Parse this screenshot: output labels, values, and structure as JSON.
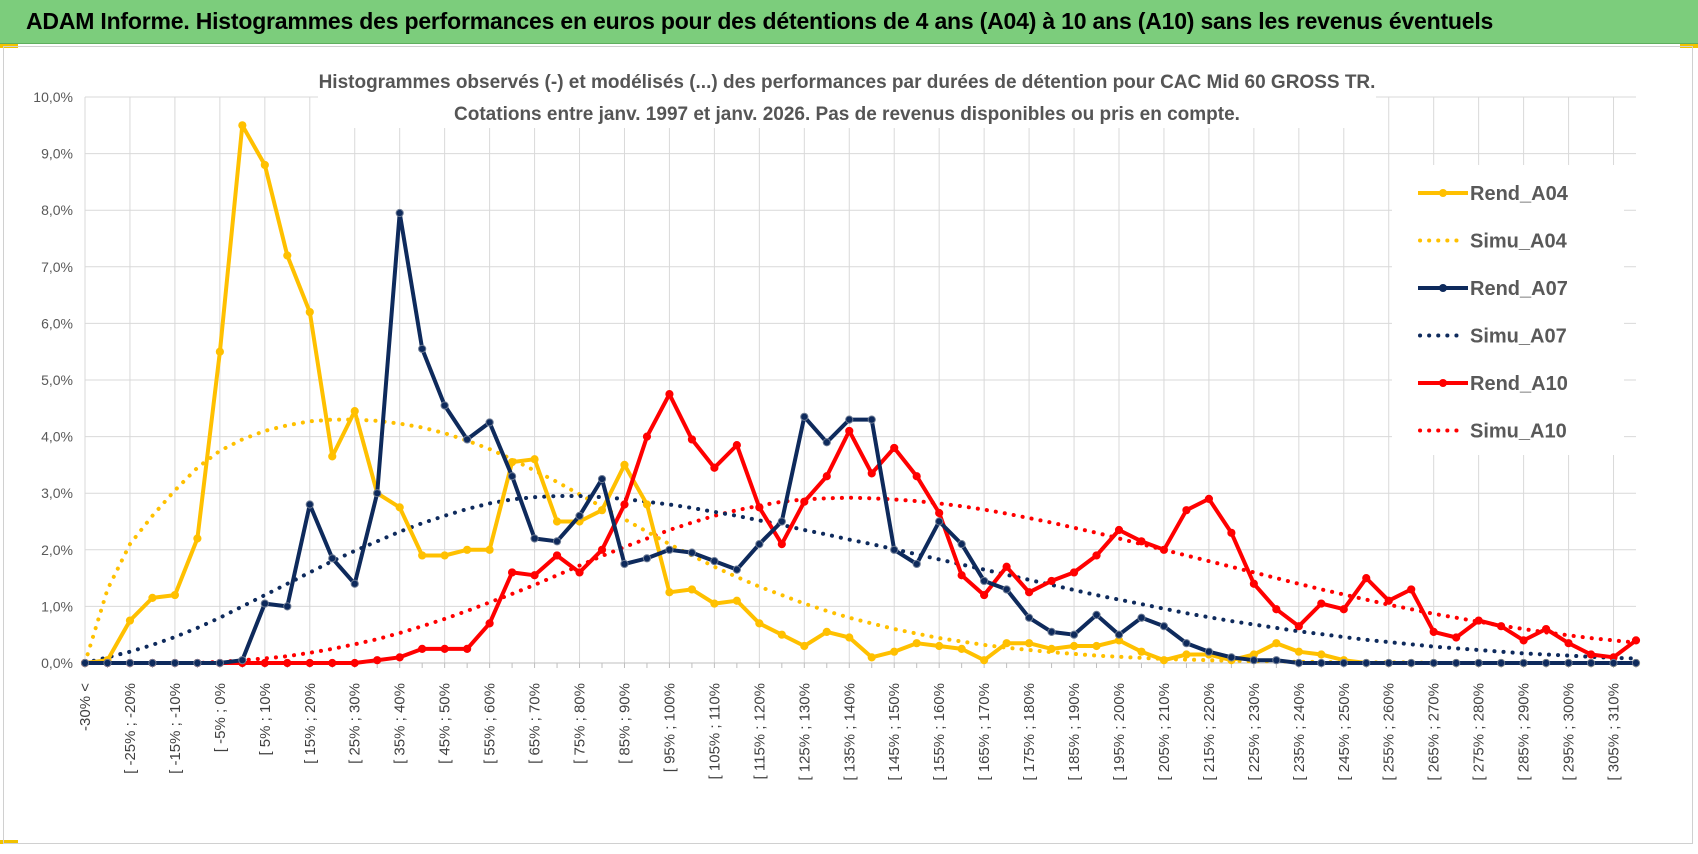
{
  "header": {
    "title": "ADAM Informe. Histogrammes des performances en euros pour des détentions de 4 ans (A04) à 10 ans (A10) sans les revenus éventuels"
  },
  "colors": {
    "header_bg": "#7ccd7c",
    "A04": "#ffc000",
    "A07": "#0e2a5c",
    "A10": "#ff0000"
  },
  "chart_data": {
    "type": "line",
    "title": [
      "Histogrammes observés (-) et modélisés (...)  des performances par durées de détention pour CAC Mid 60 GROSS TR.",
      "Cotations entre janv. 1997 et janv. 2026. Pas de revenus disponibles ou pris en compte."
    ],
    "ylim": [
      0,
      10
    ],
    "y_ticks": [
      "0,0%",
      "1,0%",
      "2,0%",
      "3,0%",
      "4,0%",
      "5,0%",
      "6,0%",
      "7,0%",
      "8,0%",
      "9,0%",
      "10,0%"
    ],
    "x_tick_labels": [
      "-30% <",
      "[ -25% ; -20%",
      "[ -15% ; -10%",
      "[ -5% ; 0%",
      "[ 5% ; 10%",
      "[ 15% ; 20%",
      "[ 25% ; 30%",
      "[ 35% ; 40%",
      "[ 45% ; 50%",
      "[ 55% ; 60%",
      "[ 65% ; 70%",
      "[ 75% ; 80%",
      "[ 85% ; 90%",
      "[ 95% ; 100%",
      "[ 105% ; 110%",
      "[ 115% ; 120%",
      "[ 125% ; 130%",
      "[ 135% ; 140%",
      "[ 145% ; 150%",
      "[ 155% ; 160%",
      "[ 165% ; 170%",
      "[ 175% ; 180%",
      "[ 185% ; 190%",
      "[ 195% ; 200%",
      "[ 205% ; 210%",
      "[ 215% ; 220%",
      "[ 225% ; 230%",
      "[ 235% ; 240%",
      "[ 245% ; 250%",
      "[ 255% ; 260%",
      "[ 265% ; 270%",
      "[ 275% ; 280%",
      "[ 285% ; 290%",
      "[ 295% ; 300%",
      "[ 305% ; 310%"
    ],
    "n_points": 70,
    "grid": true,
    "legend_position": "right",
    "series": [
      {
        "name": "Rend_A04",
        "style": "solid-markers",
        "color": "#ffc000",
        "values": [
          0,
          0.05,
          0.75,
          1.15,
          1.2,
          2.2,
          5.5,
          9.5,
          8.8,
          7.2,
          6.2,
          3.65,
          4.45,
          3.0,
          2.75,
          1.9,
          1.9,
          2.0,
          2.0,
          3.55,
          3.6,
          2.5,
          2.5,
          2.7,
          3.5,
          2.8,
          1.25,
          1.3,
          1.05,
          1.1,
          0.7,
          0.5,
          0.3,
          0.55,
          0.45,
          0.1,
          0.2,
          0.35,
          0.3,
          0.25,
          0.05,
          0.35,
          0.35,
          0.25,
          0.3,
          0.3,
          0.4,
          0.2,
          0.05,
          0.15,
          0.15,
          0.05,
          0.15,
          0.35,
          0.2,
          0.15,
          0.05,
          0,
          0,
          0,
          0,
          0,
          0,
          0,
          0,
          0,
          0,
          0,
          0,
          0
        ]
      },
      {
        "name": "Simu_A04",
        "style": "dotted",
        "color": "#ffc000",
        "values": [
          0,
          1.3,
          2.1,
          2.6,
          3.05,
          3.45,
          3.75,
          3.95,
          4.1,
          4.2,
          4.27,
          4.3,
          4.3,
          4.28,
          4.23,
          4.16,
          4.06,
          3.93,
          3.78,
          3.6,
          3.4,
          3.2,
          2.98,
          2.76,
          2.54,
          2.32,
          2.1,
          1.9,
          1.7,
          1.52,
          1.35,
          1.2,
          1.05,
          0.92,
          0.8,
          0.7,
          0.6,
          0.52,
          0.44,
          0.38,
          0.32,
          0.27,
          0.23,
          0.19,
          0.16,
          0.13,
          0.11,
          0.09,
          0.07,
          0.06,
          0.05,
          0.04,
          0.03,
          0.03,
          0.02,
          0.02,
          0.01,
          0.01,
          0.01,
          0.01,
          0,
          0,
          0,
          0,
          0,
          0,
          0,
          0,
          0,
          0
        ]
      },
      {
        "name": "Rend_A07",
        "style": "solid-markers",
        "color": "#0e2a5c",
        "values": [
          0,
          0,
          0,
          0,
          0,
          0,
          0,
          0.05,
          1.05,
          1.0,
          2.8,
          1.85,
          1.4,
          3.0,
          7.95,
          5.55,
          4.55,
          3.95,
          4.25,
          3.3,
          2.2,
          2.15,
          2.6,
          3.25,
          1.75,
          1.85,
          2.0,
          1.95,
          1.8,
          1.65,
          2.1,
          2.5,
          4.35,
          3.9,
          4.3,
          4.3,
          2.0,
          1.75,
          2.5,
          2.1,
          1.45,
          1.3,
          0.8,
          0.55,
          0.5,
          0.85,
          0.5,
          0.8,
          0.65,
          0.35,
          0.2,
          0.1,
          0.05,
          0.05,
          0,
          0,
          0,
          0,
          0,
          0,
          0,
          0,
          0,
          0,
          0,
          0,
          0,
          0,
          0,
          0
        ]
      },
      {
        "name": "Simu_A07",
        "style": "dotted",
        "color": "#0e2a5c",
        "values": [
          0,
          0.1,
          0.2,
          0.32,
          0.46,
          0.62,
          0.8,
          1.0,
          1.2,
          1.4,
          1.6,
          1.8,
          1.98,
          2.15,
          2.32,
          2.47,
          2.6,
          2.72,
          2.82,
          2.89,
          2.93,
          2.95,
          2.95,
          2.93,
          2.9,
          2.85,
          2.8,
          2.74,
          2.67,
          2.6,
          2.52,
          2.44,
          2.35,
          2.27,
          2.18,
          2.1,
          2.01,
          1.92,
          1.83,
          1.74,
          1.65,
          1.56,
          1.47,
          1.38,
          1.29,
          1.2,
          1.12,
          1.04,
          0.96,
          0.88,
          0.81,
          0.74,
          0.68,
          0.62,
          0.56,
          0.51,
          0.46,
          0.41,
          0.37,
          0.33,
          0.29,
          0.26,
          0.23,
          0.2,
          0.17,
          0.15,
          0.13,
          0.11,
          0.09,
          0.08
        ]
      },
      {
        "name": "Rend_A10",
        "style": "solid-markers",
        "color": "#ff0000",
        "values": [
          0,
          0,
          0,
          0,
          0,
          0,
          0,
          0,
          0,
          0,
          0,
          0,
          0,
          0.05,
          0.1,
          0.25,
          0.25,
          0.25,
          0.7,
          1.6,
          1.55,
          1.9,
          1.6,
          2.0,
          2.8,
          4.0,
          4.75,
          3.95,
          3.45,
          3.85,
          2.75,
          2.1,
          2.85,
          3.3,
          4.1,
          3.35,
          3.8,
          3.3,
          2.65,
          1.55,
          1.2,
          1.7,
          1.25,
          1.45,
          1.6,
          1.9,
          2.35,
          2.15,
          2.0,
          2.7,
          2.9,
          2.3,
          1.4,
          0.95,
          0.65,
          1.05,
          0.95,
          1.5,
          1.1,
          1.3,
          0.55,
          0.45,
          0.75,
          0.65,
          0.4,
          0.6,
          0.35,
          0.15,
          0.1,
          0.4
        ]
      },
      {
        "name": "Simu_A10",
        "style": "dotted",
        "color": "#ff0000",
        "values": [
          0,
          0,
          0,
          0,
          0,
          0,
          0.02,
          0.05,
          0.08,
          0.12,
          0.18,
          0.25,
          0.33,
          0.42,
          0.53,
          0.65,
          0.78,
          0.92,
          1.07,
          1.22,
          1.38,
          1.55,
          1.72,
          1.89,
          2.05,
          2.2,
          2.35,
          2.48,
          2.6,
          2.7,
          2.78,
          2.85,
          2.89,
          2.91,
          2.92,
          2.91,
          2.89,
          2.86,
          2.82,
          2.77,
          2.71,
          2.64,
          2.56,
          2.48,
          2.39,
          2.3,
          2.2,
          2.1,
          2.0,
          1.9,
          1.8,
          1.7,
          1.6,
          1.5,
          1.4,
          1.3,
          1.21,
          1.12,
          1.03,
          0.95,
          0.87,
          0.8,
          0.73,
          0.66,
          0.6,
          0.54,
          0.49,
          0.44,
          0.4,
          0.36
        ]
      }
    ]
  }
}
